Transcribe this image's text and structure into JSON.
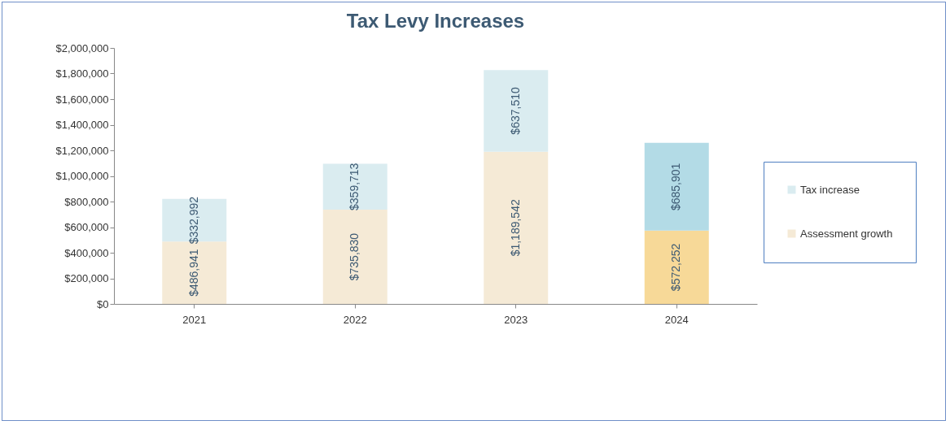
{
  "chart_data": {
    "type": "bar",
    "title": "Tax Levy Increases",
    "categories": [
      "2021",
      "2022",
      "2023",
      "2024"
    ],
    "stacked": true,
    "legend": "right",
    "grid": false,
    "ylim": [
      0,
      2000000
    ],
    "yticks": [
      {
        "value": 0,
        "label": "$0"
      },
      {
        "value": 200000,
        "label": "$200,000"
      },
      {
        "value": 400000,
        "label": "$400,000"
      },
      {
        "value": 600000,
        "label": "$600,000"
      },
      {
        "value": 800000,
        "label": "$800,000"
      },
      {
        "value": 1000000,
        "label": "$1,000,000"
      },
      {
        "value": 1200000,
        "label": "$1,200,000"
      },
      {
        "value": 1400000,
        "label": "$1,400,000"
      },
      {
        "value": 1600000,
        "label": "$1,600,000"
      },
      {
        "value": 1800000,
        "label": "$1,800,000"
      },
      {
        "value": 2000000,
        "label": "$2,000,000"
      }
    ],
    "series": [
      {
        "name": "Assessment growth",
        "color": "#f5ead6",
        "colors": [
          "#f5ead6",
          "#f5ead6",
          "#f5ead6",
          "#f7d998"
        ],
        "values": [
          486941,
          735830,
          1189542,
          572252
        ],
        "value_labels": [
          "$486,941",
          "$735,830",
          "$1,189,542",
          "$572,252"
        ]
      },
      {
        "name": "Tax increase",
        "color": "#daecf0",
        "colors": [
          "#daecf0",
          "#daecf0",
          "#daecf0",
          "#b3dbe6"
        ],
        "values": [
          332992,
          359713,
          637510,
          685901
        ],
        "value_labels": [
          "$332,992",
          "$359,713",
          "$637,510",
          "$685,901"
        ]
      }
    ]
  }
}
